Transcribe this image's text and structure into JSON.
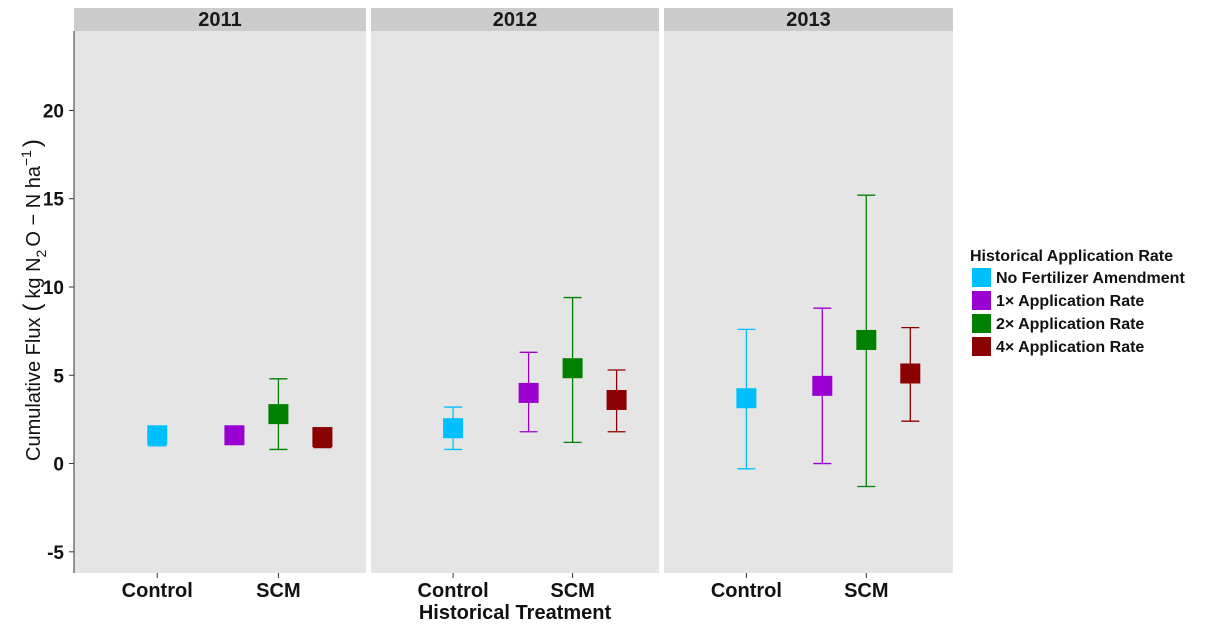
{
  "chart_data": {
    "type": "scatter",
    "facets": [
      "2011",
      "2012",
      "2013"
    ],
    "categories": [
      "Control",
      "SCM"
    ],
    "xlabel": "Historical Treatment",
    "ylabel": {
      "prefix": "Cumulative Flux",
      "open": "(",
      "kg": "kg N",
      "sub2": "2",
      "mid": "O − N ha",
      "sup": "−1",
      "close": ")"
    },
    "ylim": [
      -6.2,
      24.5
    ],
    "yticks": [
      -5,
      0,
      5,
      10,
      15,
      20
    ],
    "ytick_labels": [
      "-5",
      "0",
      "5",
      "10",
      "15",
      "20"
    ],
    "legend": {
      "title": "Historical Application Rate",
      "position": "right"
    },
    "series": [
      {
        "name": "No Fertilizer Amendment",
        "color": "#00BFFF",
        "points": [
          {
            "facet": "2011",
            "category": "Control",
            "y": 1.6,
            "lo": 1.0,
            "hi": 2.1
          },
          {
            "facet": "2012",
            "category": "Control",
            "y": 2.0,
            "lo": 0.8,
            "hi": 3.2
          },
          {
            "facet": "2013",
            "category": "Control",
            "y": 3.7,
            "lo": -0.3,
            "hi": 7.6
          }
        ]
      },
      {
        "name": "1× Application Rate",
        "color": "#9B00D3",
        "points": [
          {
            "facet": "2011",
            "category": "SCM",
            "y": 1.6,
            "lo": 1.4,
            "hi": 1.8
          },
          {
            "facet": "2012",
            "category": "SCM",
            "y": 4.0,
            "lo": 1.8,
            "hi": 6.3
          },
          {
            "facet": "2013",
            "category": "SCM",
            "y": 4.4,
            "lo": 0.0,
            "hi": 8.8
          }
        ]
      },
      {
        "name": "2× Application Rate",
        "color": "#008000",
        "points": [
          {
            "facet": "2011",
            "category": "SCM",
            "y": 2.8,
            "lo": 0.8,
            "hi": 4.8
          },
          {
            "facet": "2012",
            "category": "SCM",
            "y": 5.4,
            "lo": 1.2,
            "hi": 9.4
          },
          {
            "facet": "2013",
            "category": "SCM",
            "y": 7.0,
            "lo": -1.3,
            "hi": 15.2
          }
        ]
      },
      {
        "name": "4× Application Rate",
        "color": "#8B0000",
        "points": [
          {
            "facet": "2011",
            "category": "SCM",
            "y": 1.5,
            "lo": 0.9,
            "hi": 1.8
          },
          {
            "facet": "2012",
            "category": "SCM",
            "y": 3.6,
            "lo": 1.8,
            "hi": 5.3
          },
          {
            "facet": "2013",
            "category": "SCM",
            "y": 5.1,
            "lo": 2.4,
            "hi": 7.7
          }
        ]
      }
    ],
    "grid": false,
    "panel_background": "#E5E5E5",
    "strip_background": "#CCCCCC"
  }
}
